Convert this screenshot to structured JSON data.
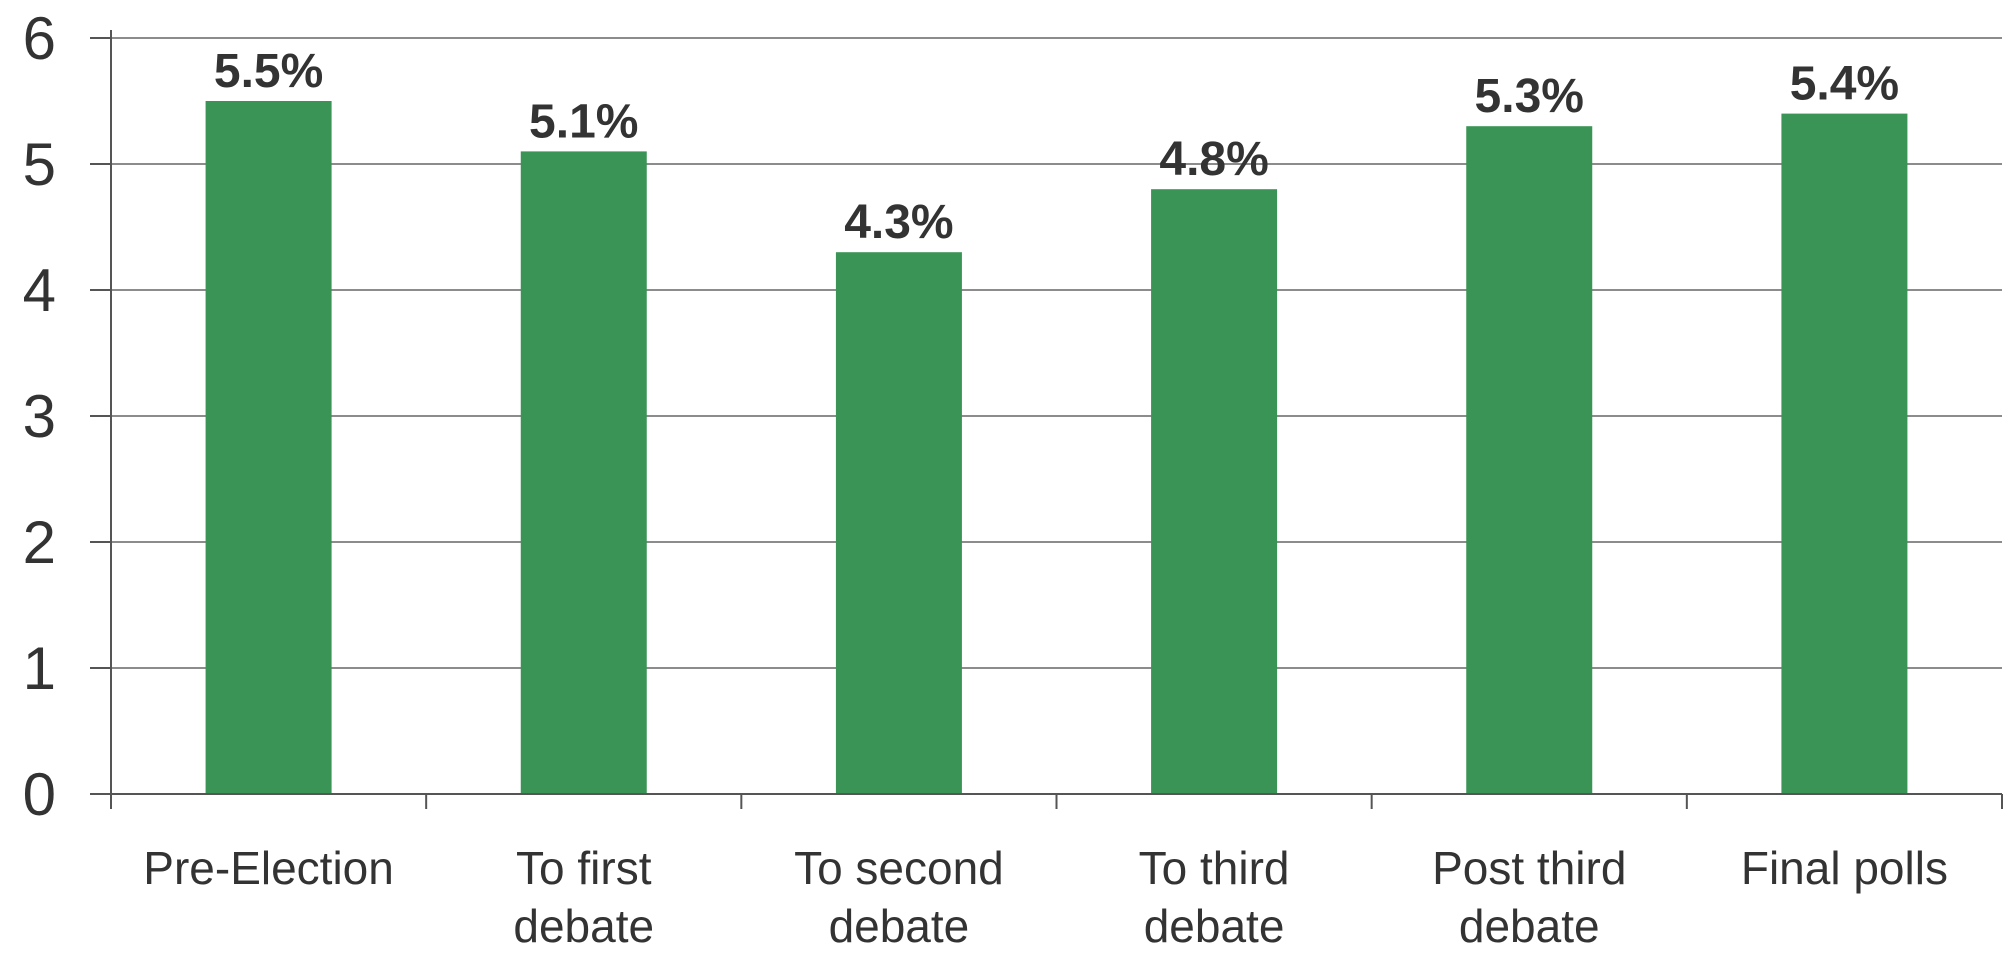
{
  "chart_data": {
    "type": "bar",
    "title": "",
    "xlabel": "",
    "ylabel": "",
    "categories": [
      [
        "Pre-Election"
      ],
      [
        "To first",
        "debate"
      ],
      [
        "To second",
        "debate"
      ],
      [
        "To third",
        "debate"
      ],
      [
        "Post third",
        "debate"
      ],
      [
        "Final polls"
      ]
    ],
    "values": [
      5.5,
      5.1,
      4.3,
      4.8,
      5.3,
      5.4
    ],
    "data_labels": [
      "5.5%",
      "5.1%",
      "4.3%",
      "4.8%",
      "5.3%",
      "5.4%"
    ],
    "yticks": [
      "0",
      "1",
      "2",
      "3",
      "4",
      "5",
      "6"
    ],
    "ylim": [
      0,
      6
    ],
    "grid": true,
    "legend": "none",
    "colors": {
      "bar": "#3a9455",
      "grid": "#8c8c8c",
      "axis": "#555555",
      "text": "#333333"
    }
  }
}
